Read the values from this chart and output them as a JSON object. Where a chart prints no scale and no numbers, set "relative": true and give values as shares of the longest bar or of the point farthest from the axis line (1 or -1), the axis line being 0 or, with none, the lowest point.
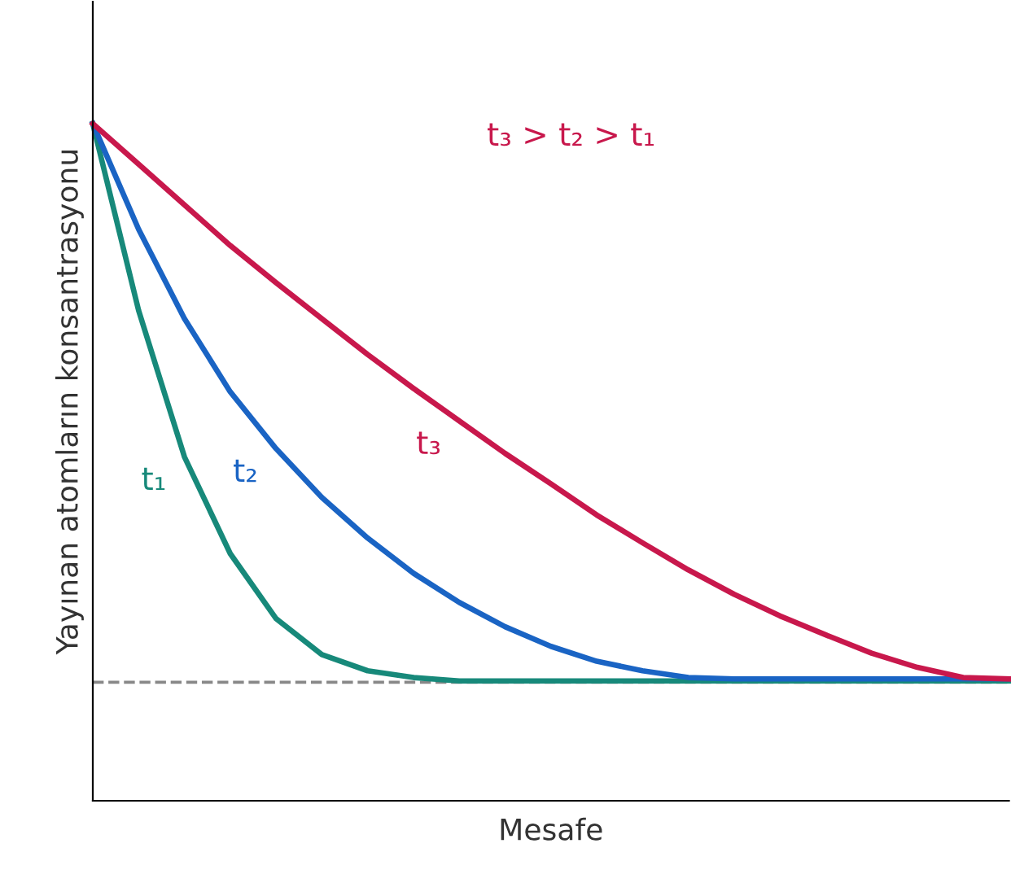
{
  "chart_data": {
    "type": "line",
    "relative": true,
    "xlabel": "Mesafe",
    "ylabel": "Yayınan atomların konsantrasyonu",
    "categories": [
      null,
      null,
      null,
      null,
      null,
      null,
      null,
      null,
      null,
      null,
      null,
      null,
      null,
      null,
      null,
      null,
      null,
      null,
      null,
      null,
      null
    ],
    "series": [
      {
        "name": "t₁",
        "color": "#17897a",
        "values": [
          1.0,
          0.724,
          0.508,
          0.365,
          0.269,
          0.216,
          0.192,
          0.182,
          0.177,
          0.177,
          0.177,
          0.177,
          0.177,
          0.177,
          0.177,
          0.177,
          0.177,
          0.177,
          0.177,
          0.177,
          0.177
        ]
      },
      {
        "name": "t₂",
        "color": "#1a64c4",
        "values": [
          1.0,
          0.844,
          0.712,
          0.604,
          0.52,
          0.448,
          0.388,
          0.336,
          0.293,
          0.257,
          0.228,
          0.206,
          0.192,
          0.182,
          0.18,
          0.18,
          0.18,
          0.18,
          0.18,
          0.18,
          0.18
        ]
      },
      {
        "name": "t₃",
        "color": "#c8184c",
        "values": [
          1.0,
          0.94,
          0.88,
          0.82,
          0.765,
          0.712,
          0.659,
          0.609,
          0.561,
          0.513,
          0.468,
          0.422,
          0.381,
          0.341,
          0.305,
          0.273,
          0.245,
          0.218,
          0.197,
          0.182,
          0.18
        ]
      }
    ],
    "ref_lines": [
      {
        "axis": "y",
        "value": 0.175,
        "color": "#888888",
        "line_style": "dashed"
      }
    ],
    "annotations": [
      "t₃ > t₂ > t₁"
    ],
    "line_style": "solid",
    "marker": "none",
    "grid": false,
    "legend": false
  }
}
